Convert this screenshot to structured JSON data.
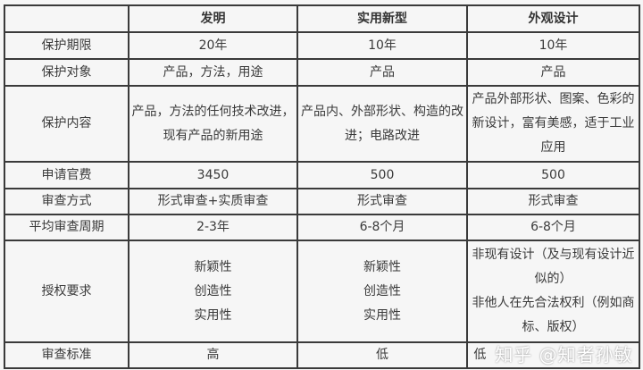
{
  "table": {
    "headers": [
      "",
      "发明",
      "实用新型",
      "外观设计"
    ],
    "rows": [
      {
        "label": "保护期限",
        "cells": [
          [
            "20年"
          ],
          [
            "10年"
          ],
          [
            "10年"
          ]
        ]
      },
      {
        "label": "保护对象",
        "cells": [
          [
            "产品，方法，用途"
          ],
          [
            "产品"
          ],
          [
            "产品"
          ]
        ]
      },
      {
        "label": "保护内容",
        "cells": [
          [
            "产品，方法的任何技术改进，现有产品的新用途"
          ],
          [
            "产品内、外部形状、构造的改进；电路改进"
          ],
          [
            "产品外部形状、图案、色彩的新设计，富有美感，适于工业应用"
          ]
        ]
      },
      {
        "label": "申请官费",
        "cells": [
          [
            "3450"
          ],
          [
            "500"
          ],
          [
            "500"
          ]
        ]
      },
      {
        "label": "审查方式",
        "cells": [
          [
            "形式审查+实质审查"
          ],
          [
            "形式审查"
          ],
          [
            "形式审查"
          ]
        ]
      },
      {
        "label": "平均审查周期",
        "cells": [
          [
            "2-3年"
          ],
          [
            "6-8个月"
          ],
          [
            "6-8个月"
          ]
        ]
      },
      {
        "label": "授权要求",
        "cells": [
          [
            "新颖性",
            "创造性",
            "实用性"
          ],
          [
            "新颖性",
            "创造性",
            "实用性"
          ],
          [
            "非现有设计（及与现有设计近似的）",
            "非他人在先合法权利（例如商标、版权）"
          ]
        ]
      },
      {
        "label": "审查标准",
        "cells": [
          [
            "高"
          ],
          [
            "低"
          ],
          [
            "低"
          ]
        ]
      }
    ]
  },
  "watermark": "知乎 @知者孙敏"
}
